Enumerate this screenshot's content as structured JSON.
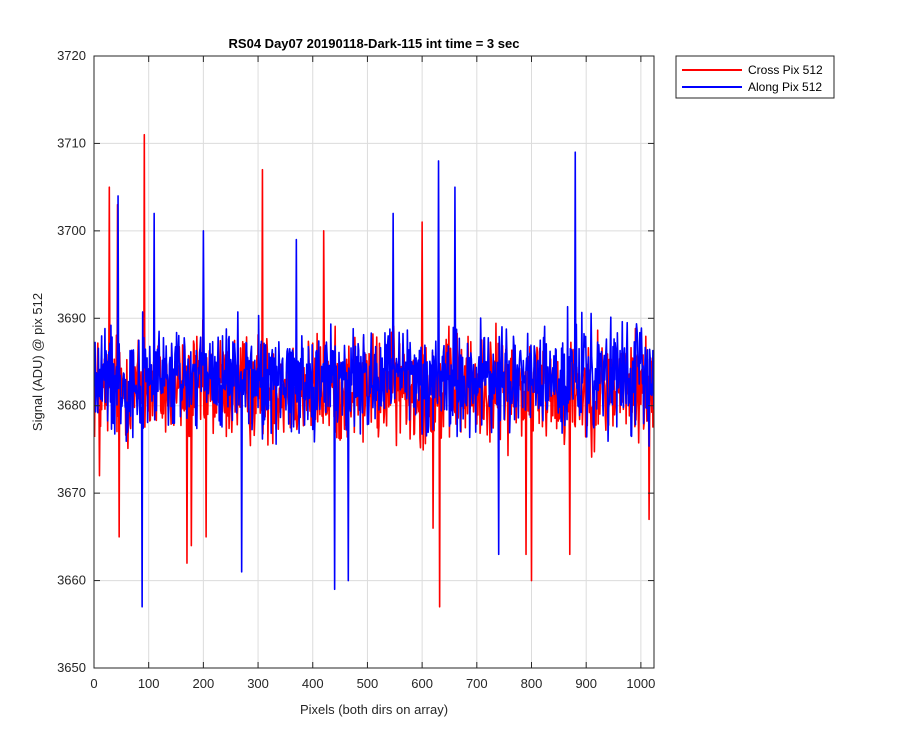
{
  "chart_data": {
    "type": "line",
    "title": "RS04 Day07 20190118-Dark-115 int time = 3 sec",
    "xlabel": "Pixels (both dirs on array)",
    "ylabel": "Signal (ADU) @ pix 512",
    "xlim": [
      0,
      1024
    ],
    "ylim": [
      3650,
      3720
    ],
    "xticks": [
      0,
      100,
      200,
      300,
      400,
      500,
      600,
      700,
      800,
      900,
      1000
    ],
    "yticks": [
      3650,
      3660,
      3670,
      3680,
      3690,
      3700,
      3710,
      3720
    ],
    "grid": true,
    "legend_position": "outside-top-right",
    "series": [
      {
        "name": "Cross Pix 512",
        "color": "#ff0000",
        "mean": 3682,
        "noise_amplitude": 7,
        "points_per_step": 1,
        "x_start": 1,
        "x_end": 1024,
        "highlights": [
          {
            "x": 10,
            "y": 3672
          },
          {
            "x": 28,
            "y": 3705
          },
          {
            "x": 43,
            "y": 3703
          },
          {
            "x": 46,
            "y": 3665
          },
          {
            "x": 92,
            "y": 3711
          },
          {
            "x": 170,
            "y": 3662
          },
          {
            "x": 178,
            "y": 3664
          },
          {
            "x": 205,
            "y": 3665
          },
          {
            "x": 308,
            "y": 3707
          },
          {
            "x": 420,
            "y": 3700
          },
          {
            "x": 600,
            "y": 3701
          },
          {
            "x": 620,
            "y": 3666
          },
          {
            "x": 632,
            "y": 3657
          },
          {
            "x": 790,
            "y": 3663
          },
          {
            "x": 800,
            "y": 3660
          },
          {
            "x": 870,
            "y": 3663
          },
          {
            "x": 1015,
            "y": 3667
          }
        ]
      },
      {
        "name": "Along Pix 512",
        "color": "#0000ff",
        "mean": 3683,
        "noise_amplitude": 7,
        "points_per_step": 1,
        "x_start": 1,
        "x_end": 1024,
        "highlights": [
          {
            "x": 44,
            "y": 3704
          },
          {
            "x": 88,
            "y": 3657
          },
          {
            "x": 110,
            "y": 3702
          },
          {
            "x": 200,
            "y": 3700
          },
          {
            "x": 270,
            "y": 3661
          },
          {
            "x": 370,
            "y": 3699
          },
          {
            "x": 440,
            "y": 3659
          },
          {
            "x": 465,
            "y": 3660
          },
          {
            "x": 547,
            "y": 3702
          },
          {
            "x": 630,
            "y": 3708
          },
          {
            "x": 660,
            "y": 3705
          },
          {
            "x": 880,
            "y": 3709
          },
          {
            "x": 740,
            "y": 3663
          }
        ]
      }
    ]
  }
}
